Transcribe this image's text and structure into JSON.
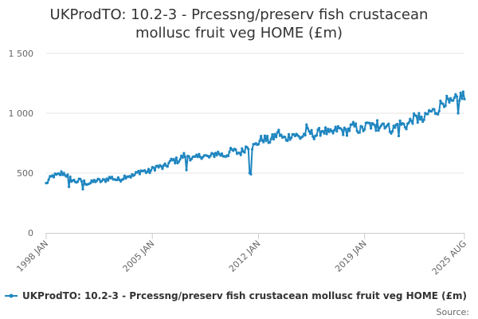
{
  "chart_data": {
    "type": "line",
    "title_line1": "UKProdTO: 10.2-3 - Prcessng/preserv fish crustacean",
    "title_line2": "mollusc fruit veg HOME (£m)",
    "xlabel": "",
    "ylabel": "",
    "ylim": [
      0,
      1500
    ],
    "y_ticks": [
      {
        "value": 0,
        "label": "0"
      },
      {
        "value": 500,
        "label": "500"
      },
      {
        "value": 1000,
        "label": "1 000"
      },
      {
        "value": 1500,
        "label": "1 500"
      }
    ],
    "x_ticks": [
      {
        "year": 1998,
        "month": 1,
        "label": "1998 JAN"
      },
      {
        "year": 2005,
        "month": 1,
        "label": "2005 JAN"
      },
      {
        "year": 2012,
        "month": 1,
        "label": "2012 JAN"
      },
      {
        "year": 2019,
        "month": 1,
        "label": "2019 JAN"
      },
      {
        "year": 2025,
        "month": 8,
        "label": "2025 AUG"
      }
    ],
    "x_start": "1998-01",
    "x_end": "2025-08",
    "grid": "horizontal",
    "legend_position": "bottom",
    "series_color": "#1f86c0",
    "series": [
      {
        "name": "UKProdTO: 10.2-3 - Prcessng/preserv fish crustacean mollusc fruit veg HOME (£m)",
        "anchors": [
          {
            "date": "1998-01",
            "value": 410
          },
          {
            "date": "1998-07",
            "value": 480
          },
          {
            "date": "1999-01",
            "value": 500
          },
          {
            "date": "1999-06",
            "value": 470
          },
          {
            "date": "2000-01",
            "value": 430
          },
          {
            "date": "2001-01",
            "value": 420
          },
          {
            "date": "2002-01",
            "value": 450
          },
          {
            "date": "2003-01",
            "value": 455
          },
          {
            "date": "2004-01",
            "value": 500
          },
          {
            "date": "2005-01",
            "value": 530
          },
          {
            "date": "2006-01",
            "value": 570
          },
          {
            "date": "2007-01",
            "value": 640
          },
          {
            "date": "2008-01",
            "value": 630
          },
          {
            "date": "2009-01",
            "value": 650
          },
          {
            "date": "2010-01",
            "value": 665
          },
          {
            "date": "2011-01",
            "value": 690
          },
          {
            "date": "2012-01",
            "value": 760
          },
          {
            "date": "2013-01",
            "value": 800
          },
          {
            "date": "2014-01",
            "value": 805
          },
          {
            "date": "2015-01",
            "value": 820
          },
          {
            "date": "2016-01",
            "value": 840
          },
          {
            "date": "2017-01",
            "value": 845
          },
          {
            "date": "2018-01",
            "value": 870
          },
          {
            "date": "2019-01",
            "value": 880
          },
          {
            "date": "2020-01",
            "value": 900
          },
          {
            "date": "2021-01",
            "value": 880
          },
          {
            "date": "2022-01",
            "value": 930
          },
          {
            "date": "2023-01",
            "value": 960
          },
          {
            "date": "2024-01",
            "value": 1070
          },
          {
            "date": "2025-01",
            "value": 1110
          },
          {
            "date": "2025-08",
            "value": 1130
          }
        ],
        "dips": [
          {
            "date": "1999-07",
            "value": 385
          },
          {
            "date": "2000-06",
            "value": 365
          },
          {
            "date": "2007-04",
            "value": 525
          },
          {
            "date": "2011-06",
            "value": 500
          },
          {
            "date": "2011-07",
            "value": 490
          },
          {
            "date": "2021-04",
            "value": 810
          },
          {
            "date": "2025-03",
            "value": 1000
          }
        ],
        "peaks": [
          {
            "date": "2013-05",
            "value": 860
          },
          {
            "date": "2015-03",
            "value": 905
          },
          {
            "date": "2019-11",
            "value": 940
          },
          {
            "date": "2022-08",
            "value": 1000
          },
          {
            "date": "2025-07",
            "value": 1180
          }
        ]
      }
    ]
  },
  "legend": {
    "label": "UKProdTO: 10.2-3 - Prcessng/preserv fish crustacean mollusc fruit veg HOME (£m)"
  },
  "source": {
    "label": "Source:"
  }
}
